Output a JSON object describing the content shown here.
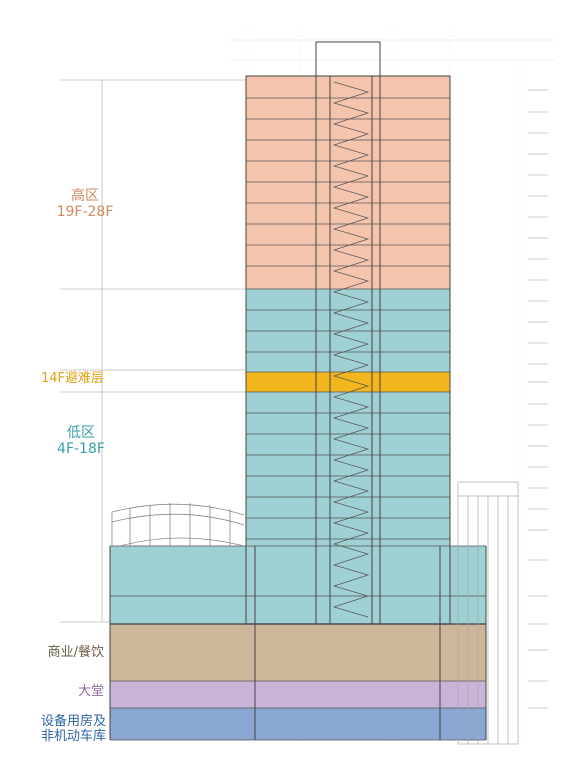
{
  "zones": {
    "high": {
      "name": "高区",
      "range": "19F-28F",
      "color": "#f5c4ad"
    },
    "refuge": {
      "name": "14F避难层",
      "color": "#f3b61e"
    },
    "low": {
      "name": "低区",
      "range": "4F-18F",
      "color": "#9fd0d3"
    },
    "commercial": {
      "name": "商业/餐饮",
      "color": "#cdb79a"
    },
    "lobby": {
      "name": "大堂",
      "color": "#c9b3d6"
    },
    "equipment": {
      "name_line1": "设备用房及",
      "name_line2": "非机动车库",
      "color": "#8aa6d2"
    }
  }
}
